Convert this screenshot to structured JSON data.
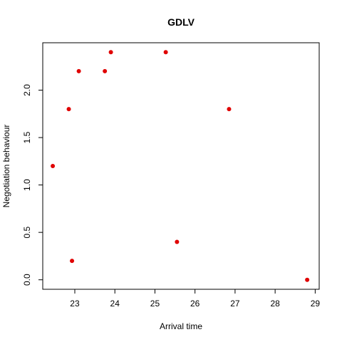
{
  "chart_data": {
    "type": "scatter",
    "title": "GDLV",
    "xlabel": "Arrival time",
    "ylabel": "Negotiation behaviour",
    "xlim": [
      22.2,
      29.1
    ],
    "ylim": [
      -0.1,
      2.5
    ],
    "xticks": [
      23,
      24,
      25,
      26,
      27,
      28,
      29
    ],
    "yticks": [
      0.0,
      0.5,
      1.0,
      1.5,
      2.0
    ],
    "ytick_labels": [
      "0.0",
      "0.5",
      "1.0",
      "1.5",
      "2.0"
    ],
    "grid": false,
    "point_color": "#e00000",
    "points": [
      {
        "x": 22.45,
        "y": 1.2
      },
      {
        "x": 22.85,
        "y": 1.8
      },
      {
        "x": 22.93,
        "y": 0.2
      },
      {
        "x": 23.1,
        "y": 2.2
      },
      {
        "x": 23.75,
        "y": 2.2
      },
      {
        "x": 23.9,
        "y": 2.4
      },
      {
        "x": 25.27,
        "y": 2.4
      },
      {
        "x": 25.55,
        "y": 0.4
      },
      {
        "x": 26.85,
        "y": 1.8
      },
      {
        "x": 28.8,
        "y": 0.0
      }
    ]
  }
}
